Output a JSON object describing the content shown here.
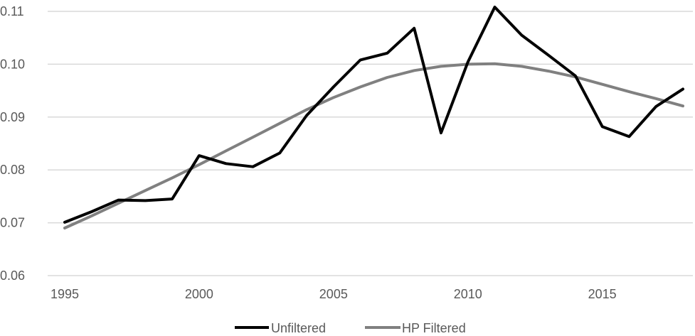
{
  "chart_data": {
    "type": "line",
    "title": "",
    "xlabel": "",
    "ylabel": "",
    "x": [
      1995,
      1996,
      1997,
      1998,
      1999,
      2000,
      2001,
      2002,
      2003,
      2004,
      2005,
      2006,
      2007,
      2008,
      2009,
      2010,
      2011,
      2012,
      2013,
      2014,
      2015,
      2016,
      2017,
      2018
    ],
    "xticks": [
      "1995",
      "2000",
      "2005",
      "2010",
      "2015"
    ],
    "yticks": [
      "0.06",
      "0.07",
      "0.08",
      "0.09",
      "0.10",
      "0.11"
    ],
    "ylim": [
      0.06,
      0.11
    ],
    "xlim": [
      1995,
      2018
    ],
    "grid": "horizontal",
    "legend_position": "bottom",
    "series": [
      {
        "name": "Unfiltered",
        "color": "#000000",
        "values": [
          0.0701,
          0.0721,
          0.0743,
          0.0742,
          0.0745,
          0.0827,
          0.0812,
          0.0806,
          0.0832,
          0.0903,
          0.0957,
          0.1008,
          0.1021,
          0.1068,
          0.087,
          0.1004,
          0.1108,
          0.1055,
          0.1017,
          0.0978,
          0.0882,
          0.0863,
          0.092,
          0.0953
        ]
      },
      {
        "name": "HP Filtered",
        "color": "#808080",
        "values": [
          0.069,
          0.0713,
          0.0737,
          0.0761,
          0.0785,
          0.081,
          0.0836,
          0.0862,
          0.0888,
          0.0914,
          0.0937,
          0.0957,
          0.0975,
          0.0988,
          0.0996,
          0.1,
          0.1001,
          0.0996,
          0.0987,
          0.0976,
          0.0962,
          0.0948,
          0.0935,
          0.0921
        ]
      }
    ]
  }
}
